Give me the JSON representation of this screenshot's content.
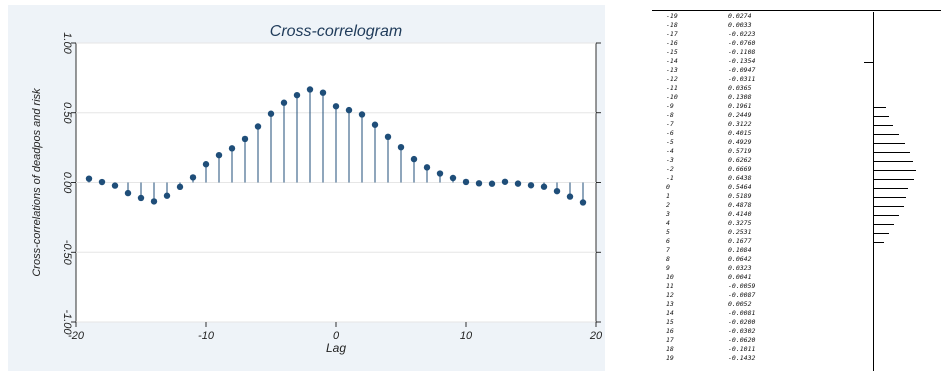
{
  "chart_data": {
    "type": "scatter",
    "subtype": "stem",
    "title": "Cross-correlogram",
    "xlabel": "Lag",
    "ylabel": "Cross-correlations of deadpos and risk",
    "xlim": [
      -20,
      20
    ],
    "ylim": [
      -1,
      1
    ],
    "xticks": [
      -20,
      -10,
      0,
      10,
      20
    ],
    "yticks": [
      -1.0,
      -0.5,
      0.0,
      0.5,
      1.0
    ],
    "ytick_labels": [
      "-1.00",
      "-0.50",
      "0.00",
      "0.50",
      "1.00"
    ],
    "xtick_labels": [
      "-20",
      "-10",
      "0",
      "10",
      "20"
    ],
    "grid": true,
    "colors": {
      "marker": "#1f4e79",
      "stem": "#1f4e79",
      "plot_bg": "#ffffff",
      "outer_bg": "#eef3f8",
      "grid": "#e6e6e6"
    },
    "x": [
      -19,
      -18,
      -17,
      -16,
      -15,
      -14,
      -13,
      -12,
      -11,
      -10,
      -9,
      -8,
      -7,
      -6,
      -5,
      -4,
      -3,
      -2,
      -1,
      0,
      1,
      2,
      3,
      4,
      5,
      6,
      7,
      8,
      9,
      10,
      11,
      12,
      13,
      14,
      15,
      16,
      17,
      18,
      19
    ],
    "y": [
      0.0274,
      0.0033,
      -0.0223,
      -0.076,
      -0.1108,
      -0.1354,
      -0.0947,
      -0.0311,
      0.0365,
      0.1308,
      0.1961,
      0.2449,
      0.3122,
      0.4015,
      0.4929,
      0.5719,
      0.6262,
      0.6669,
      0.6438,
      0.5464,
      0.5189,
      0.4878,
      0.414,
      0.3275,
      0.2531,
      0.1677,
      0.1084,
      0.0642,
      0.0323,
      0.0041,
      -0.0059,
      -0.0087,
      0.0052,
      -0.0081,
      -0.02,
      -0.0302,
      -0.062,
      -0.1011,
      -0.1432
    ]
  },
  "table": {
    "rows": [
      {
        "lag": "-19",
        "val": "0.0274"
      },
      {
        "lag": "-18",
        "val": "0.0033"
      },
      {
        "lag": "-17",
        "val": "-0.0223"
      },
      {
        "lag": "-16",
        "val": "-0.0760"
      },
      {
        "lag": "-15",
        "val": "-0.1108"
      },
      {
        "lag": "-14",
        "val": "-0.1354"
      },
      {
        "lag": "-13",
        "val": "-0.0947"
      },
      {
        "lag": "-12",
        "val": "-0.0311"
      },
      {
        "lag": "-11",
        "val": "0.0365"
      },
      {
        "lag": "-10",
        "val": "0.1308"
      },
      {
        "lag": "-9",
        "val": "0.1961"
      },
      {
        "lag": "-8",
        "val": "0.2449"
      },
      {
        "lag": "-7",
        "val": "0.3122"
      },
      {
        "lag": "-6",
        "val": "0.4015"
      },
      {
        "lag": "-5",
        "val": "0.4929"
      },
      {
        "lag": "-4",
        "val": "0.5719"
      },
      {
        "lag": "-3",
        "val": "0.6262"
      },
      {
        "lag": "-2",
        "val": "0.6669"
      },
      {
        "lag": "-1",
        "val": "0.6438"
      },
      {
        "lag": "0",
        "val": "0.5464"
      },
      {
        "lag": "1",
        "val": "0.5189"
      },
      {
        "lag": "2",
        "val": "0.4878"
      },
      {
        "lag": "3",
        "val": "0.4140"
      },
      {
        "lag": "4",
        "val": "0.3275"
      },
      {
        "lag": "5",
        "val": "0.2531"
      },
      {
        "lag": "6",
        "val": "0.1677"
      },
      {
        "lag": "7",
        "val": "0.1084"
      },
      {
        "lag": "8",
        "val": "0.0642"
      },
      {
        "lag": "9",
        "val": "0.0323"
      },
      {
        "lag": "10",
        "val": "0.0041"
      },
      {
        "lag": "11",
        "val": "-0.0059"
      },
      {
        "lag": "12",
        "val": "-0.0087"
      },
      {
        "lag": "13",
        "val": "0.0052"
      },
      {
        "lag": "14",
        "val": "-0.0081"
      },
      {
        "lag": "15",
        "val": "-0.0200"
      },
      {
        "lag": "16",
        "val": "-0.0302"
      },
      {
        "lag": "17",
        "val": "-0.0620"
      },
      {
        "lag": "18",
        "val": "-0.1011"
      },
      {
        "lag": "19",
        "val": "-0.1432"
      }
    ],
    "bars": [
      {
        "lag": "-14",
        "value": -0.1354
      },
      {
        "lag": "-9",
        "value": 0.1961
      },
      {
        "lag": "-8",
        "value": 0.2449
      },
      {
        "lag": "-7",
        "value": 0.3122
      },
      {
        "lag": "-6",
        "value": 0.4015
      },
      {
        "lag": "-5",
        "value": 0.4929
      },
      {
        "lag": "-4",
        "value": 0.5719
      },
      {
        "lag": "-3",
        "value": 0.6262
      },
      {
        "lag": "-2",
        "value": 0.6669
      },
      {
        "lag": "-1",
        "value": 0.6438
      },
      {
        "lag": "0",
        "value": 0.5464
      },
      {
        "lag": "1",
        "value": 0.5189
      },
      {
        "lag": "2",
        "value": 0.4878
      },
      {
        "lag": "3",
        "value": 0.414
      },
      {
        "lag": "4",
        "value": 0.3275
      },
      {
        "lag": "5",
        "value": 0.2531
      },
      {
        "lag": "6",
        "value": 0.1677
      }
    ]
  }
}
